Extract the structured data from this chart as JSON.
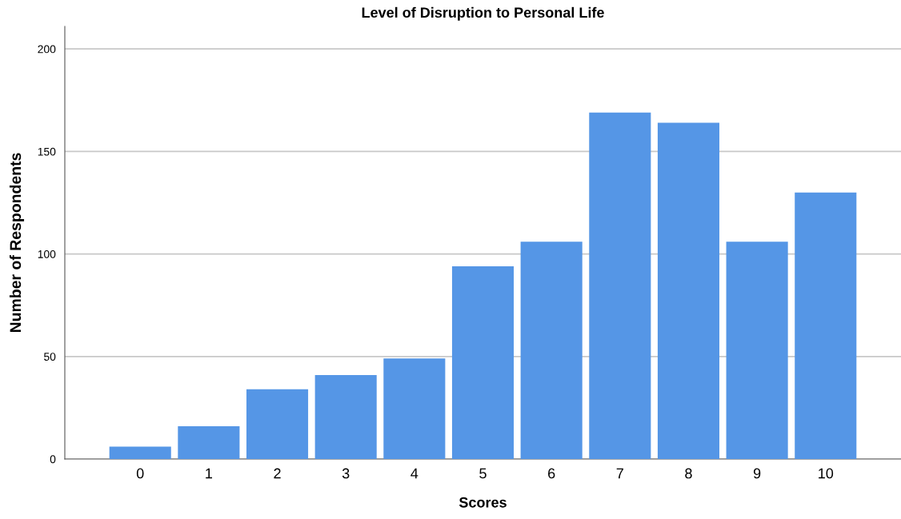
{
  "chart_data": {
    "type": "bar",
    "title": "Level of Disruption to Personal Life",
    "xlabel": "Scores",
    "ylabel": "Number of Respondents",
    "categories": [
      "0",
      "1",
      "2",
      "3",
      "4",
      "5",
      "6",
      "7",
      "8",
      "9",
      "10"
    ],
    "values": [
      6,
      16,
      34,
      41,
      49,
      94,
      106,
      169,
      164,
      106,
      130
    ],
    "color": "#5596e6",
    "ylim": [
      0,
      211
    ],
    "yticks": [
      0,
      50,
      100,
      150,
      200
    ],
    "grid": "y"
  }
}
